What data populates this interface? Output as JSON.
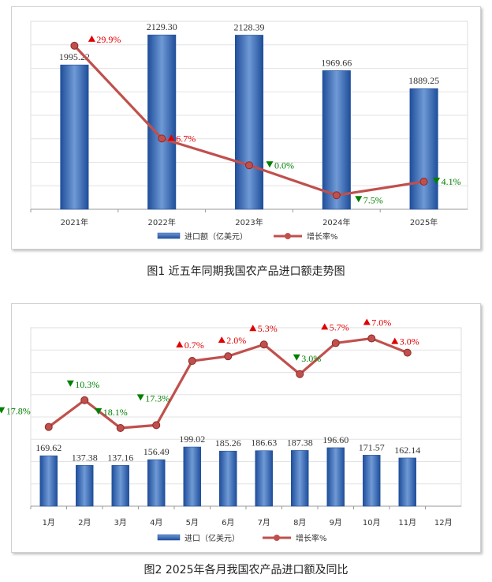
{
  "colors": {
    "bar_top": "#6f9ad6",
    "bar_bottom": "#1f4e9a",
    "line": "#c0504d",
    "up": "#e00000",
    "down": "#008000",
    "grid": "#e3e3e3"
  },
  "chart_data": [
    {
      "type": "bar+line",
      "caption": "图1 近五年同期我国农产品进口额走势图",
      "categories": [
        "2021年",
        "2022年",
        "2023年",
        "2024年",
        "2025年"
      ],
      "series": [
        {
          "name": "进口额（亿美元）",
          "type": "bar",
          "values": [
            1995.22,
            2129.3,
            2128.39,
            1969.66,
            1889.25
          ],
          "labels": [
            "1995.22",
            "2129.30",
            "2128.39",
            "1969.66",
            "1889.25"
          ]
        },
        {
          "name": "增长率%",
          "type": "line",
          "axis": "secondary",
          "values": [
            29.9,
            6.7,
            0.0,
            -7.5,
            -4.1
          ],
          "labels": [
            "29.9%",
            "6.7%",
            "0.0%",
            "7.5%",
            "4.1%"
          ],
          "direction": [
            "up",
            "up",
            "down",
            "down",
            "down"
          ]
        }
      ],
      "bar_ylim": [
        1350,
        2190
      ],
      "line_ylim": [
        -11,
        36
      ],
      "grid": true,
      "legend": "bottom"
    },
    {
      "type": "bar+line",
      "caption": "图2 2025年各月我国农产品进口额及同比",
      "categories": [
        "1月",
        "2月",
        "3月",
        "4月",
        "5月",
        "6月",
        "7月",
        "8月",
        "9月",
        "10月",
        "11月",
        "12月"
      ],
      "series": [
        {
          "name": "进口（亿美元）",
          "type": "bar",
          "values": [
            169.62,
            137.38,
            137.16,
            156.49,
            199.02,
            185.26,
            186.63,
            187.38,
            196.6,
            171.57,
            162.14,
            null
          ],
          "labels": [
            "169.62",
            "137.38",
            "137.16",
            "156.49",
            "199.02",
            "185.26",
            "186.63",
            "187.38",
            "196.60",
            "171.57",
            "162.14",
            ""
          ]
        },
        {
          "name": "增长率%",
          "type": "line",
          "axis": "secondary",
          "values": [
            -17.8,
            -10.3,
            -18.1,
            -17.3,
            0.7,
            2.0,
            5.3,
            -3.0,
            5.7,
            7.0,
            3.0,
            null
          ],
          "labels": [
            "17.8%",
            "10.3%",
            "18.1%",
            "17.3%",
            "0.7%",
            "2.0%",
            "5.3%",
            "3.0%",
            "5.7%",
            "7.0%",
            "3.0%",
            ""
          ],
          "direction": [
            "down",
            "down",
            "down",
            "down",
            "up",
            "up",
            "up",
            "down",
            "up",
            "up",
            "up",
            ""
          ]
        }
      ],
      "bar_ylim": [
        0,
        600
      ],
      "line_ylim": [
        -40,
        10
      ],
      "grid": true,
      "legend": "bottom"
    }
  ]
}
